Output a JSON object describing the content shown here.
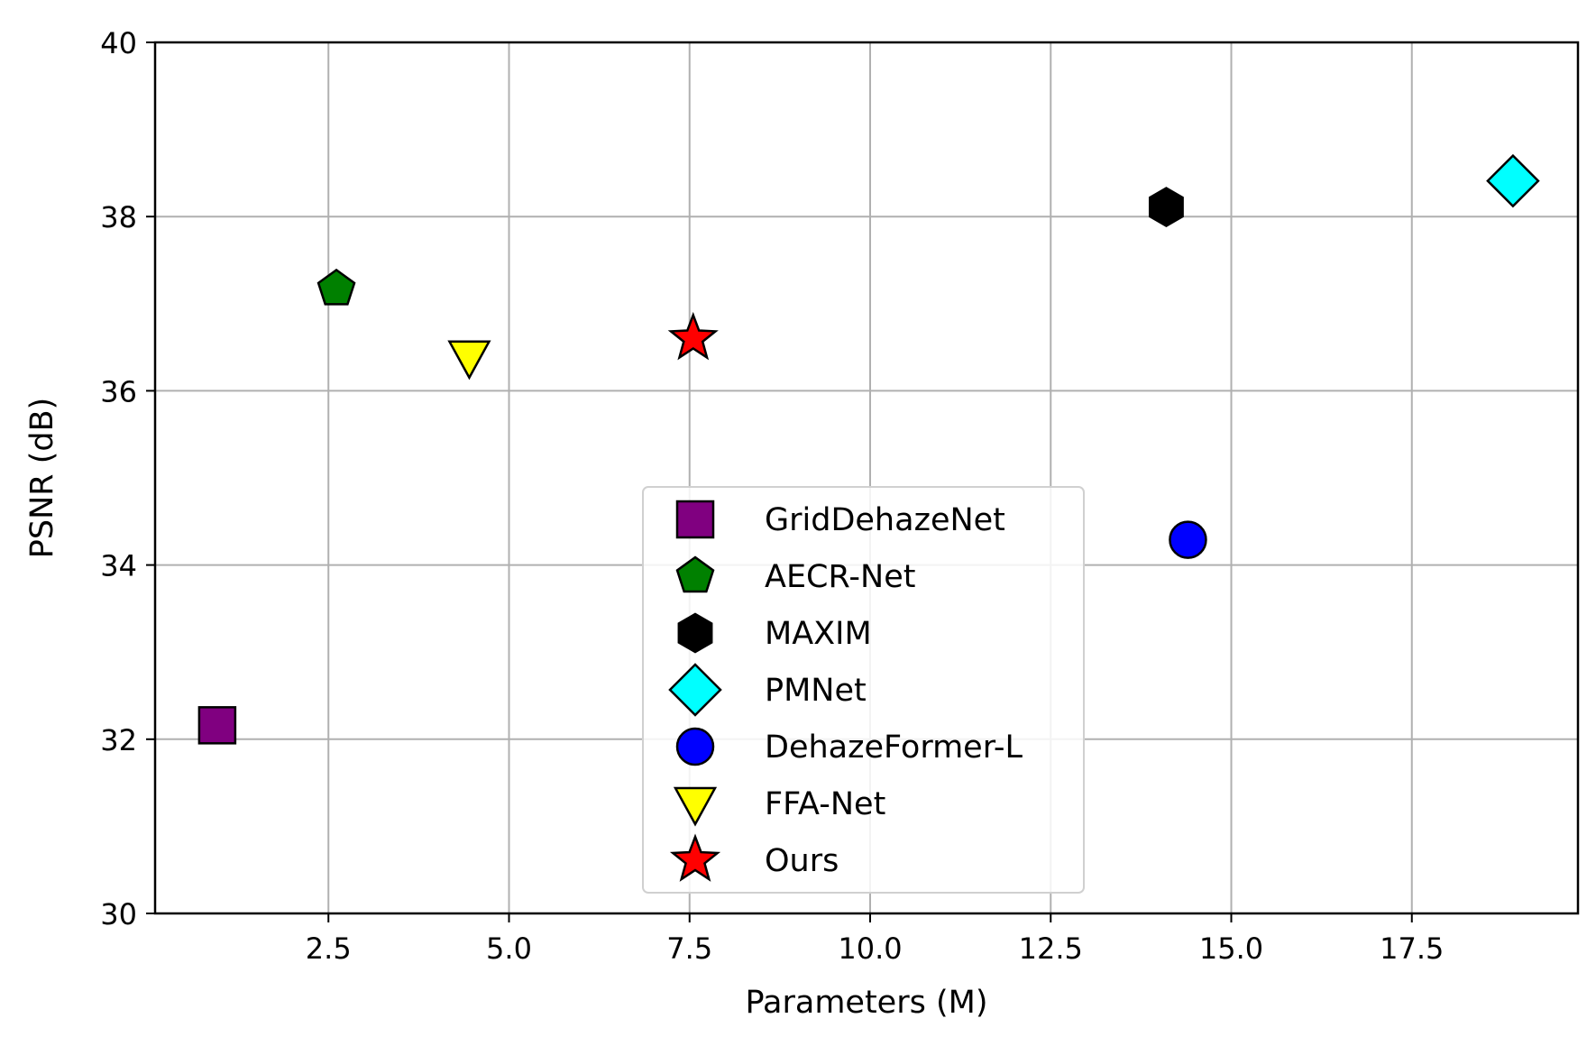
{
  "chart_data": {
    "type": "scatter",
    "title": "",
    "xlabel": "Parameters (M)",
    "ylabel": "PSNR (dB)",
    "xlim": [
      0.1,
      19.8
    ],
    "ylim": [
      30,
      40
    ],
    "xticks": [
      2.5,
      5.0,
      7.5,
      10.0,
      12.5,
      15.0,
      17.5
    ],
    "xtick_labels": [
      "2.5",
      "5.0",
      "7.5",
      "10.0",
      "12.5",
      "15.0",
      "17.5"
    ],
    "yticks": [
      30,
      32,
      34,
      36,
      38,
      40
    ],
    "ytick_labels": [
      "30",
      "32",
      "34",
      "36",
      "38",
      "40"
    ],
    "grid": true,
    "legend_position": "lower-center",
    "series": [
      {
        "name": "GridDehazeNet",
        "x": 0.96,
        "y": 32.16,
        "marker": "square",
        "color": "#800080"
      },
      {
        "name": "AECR-Net",
        "x": 2.61,
        "y": 37.17,
        "marker": "pentagon",
        "color": "#008000"
      },
      {
        "name": "MAXIM",
        "x": 14.1,
        "y": 38.11,
        "marker": "hexagon",
        "color": "#000000"
      },
      {
        "name": "PMNet",
        "x": 18.9,
        "y": 38.41,
        "marker": "diamond",
        "color": "#00ffff"
      },
      {
        "name": "DehazeFormer-L",
        "x": 14.4,
        "y": 34.29,
        "marker": "circle",
        "color": "#0000ff"
      },
      {
        "name": "FFA-Net",
        "x": 4.45,
        "y": 36.39,
        "marker": "triangle-down",
        "color": "#ffff00"
      },
      {
        "name": "Ours",
        "x": 7.55,
        "y": 36.6,
        "marker": "star",
        "color": "#ff0000"
      }
    ]
  }
}
